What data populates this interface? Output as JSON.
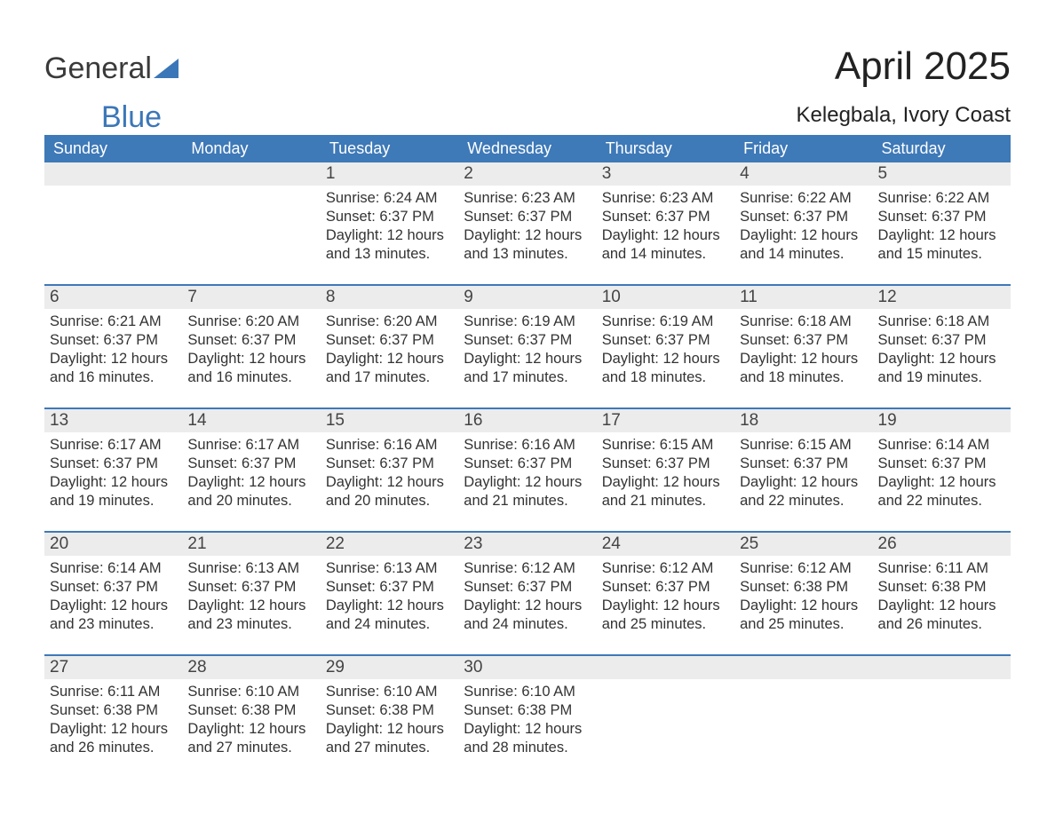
{
  "brand": {
    "word1": "General",
    "word2": "Blue"
  },
  "title": "April 2025",
  "subtitle": "Kelegbala, Ivory Coast",
  "colors": {
    "header_bg": "#3e79b8",
    "header_fg": "#ffffff",
    "daynum_bg": "#ececec",
    "text": "#333333",
    "brand_blue": "#3b77b8"
  },
  "dayNames": [
    "Sunday",
    "Monday",
    "Tuesday",
    "Wednesday",
    "Thursday",
    "Friday",
    "Saturday"
  ],
  "weeks": [
    [
      null,
      null,
      {
        "n": "1",
        "sunrise": "6:24 AM",
        "sunset": "6:37 PM",
        "daylight": "12 hours and 13 minutes."
      },
      {
        "n": "2",
        "sunrise": "6:23 AM",
        "sunset": "6:37 PM",
        "daylight": "12 hours and 13 minutes."
      },
      {
        "n": "3",
        "sunrise": "6:23 AM",
        "sunset": "6:37 PM",
        "daylight": "12 hours and 14 minutes."
      },
      {
        "n": "4",
        "sunrise": "6:22 AM",
        "sunset": "6:37 PM",
        "daylight": "12 hours and 14 minutes."
      },
      {
        "n": "5",
        "sunrise": "6:22 AM",
        "sunset": "6:37 PM",
        "daylight": "12 hours and 15 minutes."
      }
    ],
    [
      {
        "n": "6",
        "sunrise": "6:21 AM",
        "sunset": "6:37 PM",
        "daylight": "12 hours and 16 minutes."
      },
      {
        "n": "7",
        "sunrise": "6:20 AM",
        "sunset": "6:37 PM",
        "daylight": "12 hours and 16 minutes."
      },
      {
        "n": "8",
        "sunrise": "6:20 AM",
        "sunset": "6:37 PM",
        "daylight": "12 hours and 17 minutes."
      },
      {
        "n": "9",
        "sunrise": "6:19 AM",
        "sunset": "6:37 PM",
        "daylight": "12 hours and 17 minutes."
      },
      {
        "n": "10",
        "sunrise": "6:19 AM",
        "sunset": "6:37 PM",
        "daylight": "12 hours and 18 minutes."
      },
      {
        "n": "11",
        "sunrise": "6:18 AM",
        "sunset": "6:37 PM",
        "daylight": "12 hours and 18 minutes."
      },
      {
        "n": "12",
        "sunrise": "6:18 AM",
        "sunset": "6:37 PM",
        "daylight": "12 hours and 19 minutes."
      }
    ],
    [
      {
        "n": "13",
        "sunrise": "6:17 AM",
        "sunset": "6:37 PM",
        "daylight": "12 hours and 19 minutes."
      },
      {
        "n": "14",
        "sunrise": "6:17 AM",
        "sunset": "6:37 PM",
        "daylight": "12 hours and 20 minutes."
      },
      {
        "n": "15",
        "sunrise": "6:16 AM",
        "sunset": "6:37 PM",
        "daylight": "12 hours and 20 minutes."
      },
      {
        "n": "16",
        "sunrise": "6:16 AM",
        "sunset": "6:37 PM",
        "daylight": "12 hours and 21 minutes."
      },
      {
        "n": "17",
        "sunrise": "6:15 AM",
        "sunset": "6:37 PM",
        "daylight": "12 hours and 21 minutes."
      },
      {
        "n": "18",
        "sunrise": "6:15 AM",
        "sunset": "6:37 PM",
        "daylight": "12 hours and 22 minutes."
      },
      {
        "n": "19",
        "sunrise": "6:14 AM",
        "sunset": "6:37 PM",
        "daylight": "12 hours and 22 minutes."
      }
    ],
    [
      {
        "n": "20",
        "sunrise": "6:14 AM",
        "sunset": "6:37 PM",
        "daylight": "12 hours and 23 minutes."
      },
      {
        "n": "21",
        "sunrise": "6:13 AM",
        "sunset": "6:37 PM",
        "daylight": "12 hours and 23 minutes."
      },
      {
        "n": "22",
        "sunrise": "6:13 AM",
        "sunset": "6:37 PM",
        "daylight": "12 hours and 24 minutes."
      },
      {
        "n": "23",
        "sunrise": "6:12 AM",
        "sunset": "6:37 PM",
        "daylight": "12 hours and 24 minutes."
      },
      {
        "n": "24",
        "sunrise": "6:12 AM",
        "sunset": "6:37 PM",
        "daylight": "12 hours and 25 minutes."
      },
      {
        "n": "25",
        "sunrise": "6:12 AM",
        "sunset": "6:38 PM",
        "daylight": "12 hours and 25 minutes."
      },
      {
        "n": "26",
        "sunrise": "6:11 AM",
        "sunset": "6:38 PM",
        "daylight": "12 hours and 26 minutes."
      }
    ],
    [
      {
        "n": "27",
        "sunrise": "6:11 AM",
        "sunset": "6:38 PM",
        "daylight": "12 hours and 26 minutes."
      },
      {
        "n": "28",
        "sunrise": "6:10 AM",
        "sunset": "6:38 PM",
        "daylight": "12 hours and 27 minutes."
      },
      {
        "n": "29",
        "sunrise": "6:10 AM",
        "sunset": "6:38 PM",
        "daylight": "12 hours and 27 minutes."
      },
      {
        "n": "30",
        "sunrise": "6:10 AM",
        "sunset": "6:38 PM",
        "daylight": "12 hours and 28 minutes."
      },
      null,
      null,
      null
    ]
  ],
  "labels": {
    "sunrise": "Sunrise: ",
    "sunset": "Sunset: ",
    "daylight": "Daylight: "
  }
}
